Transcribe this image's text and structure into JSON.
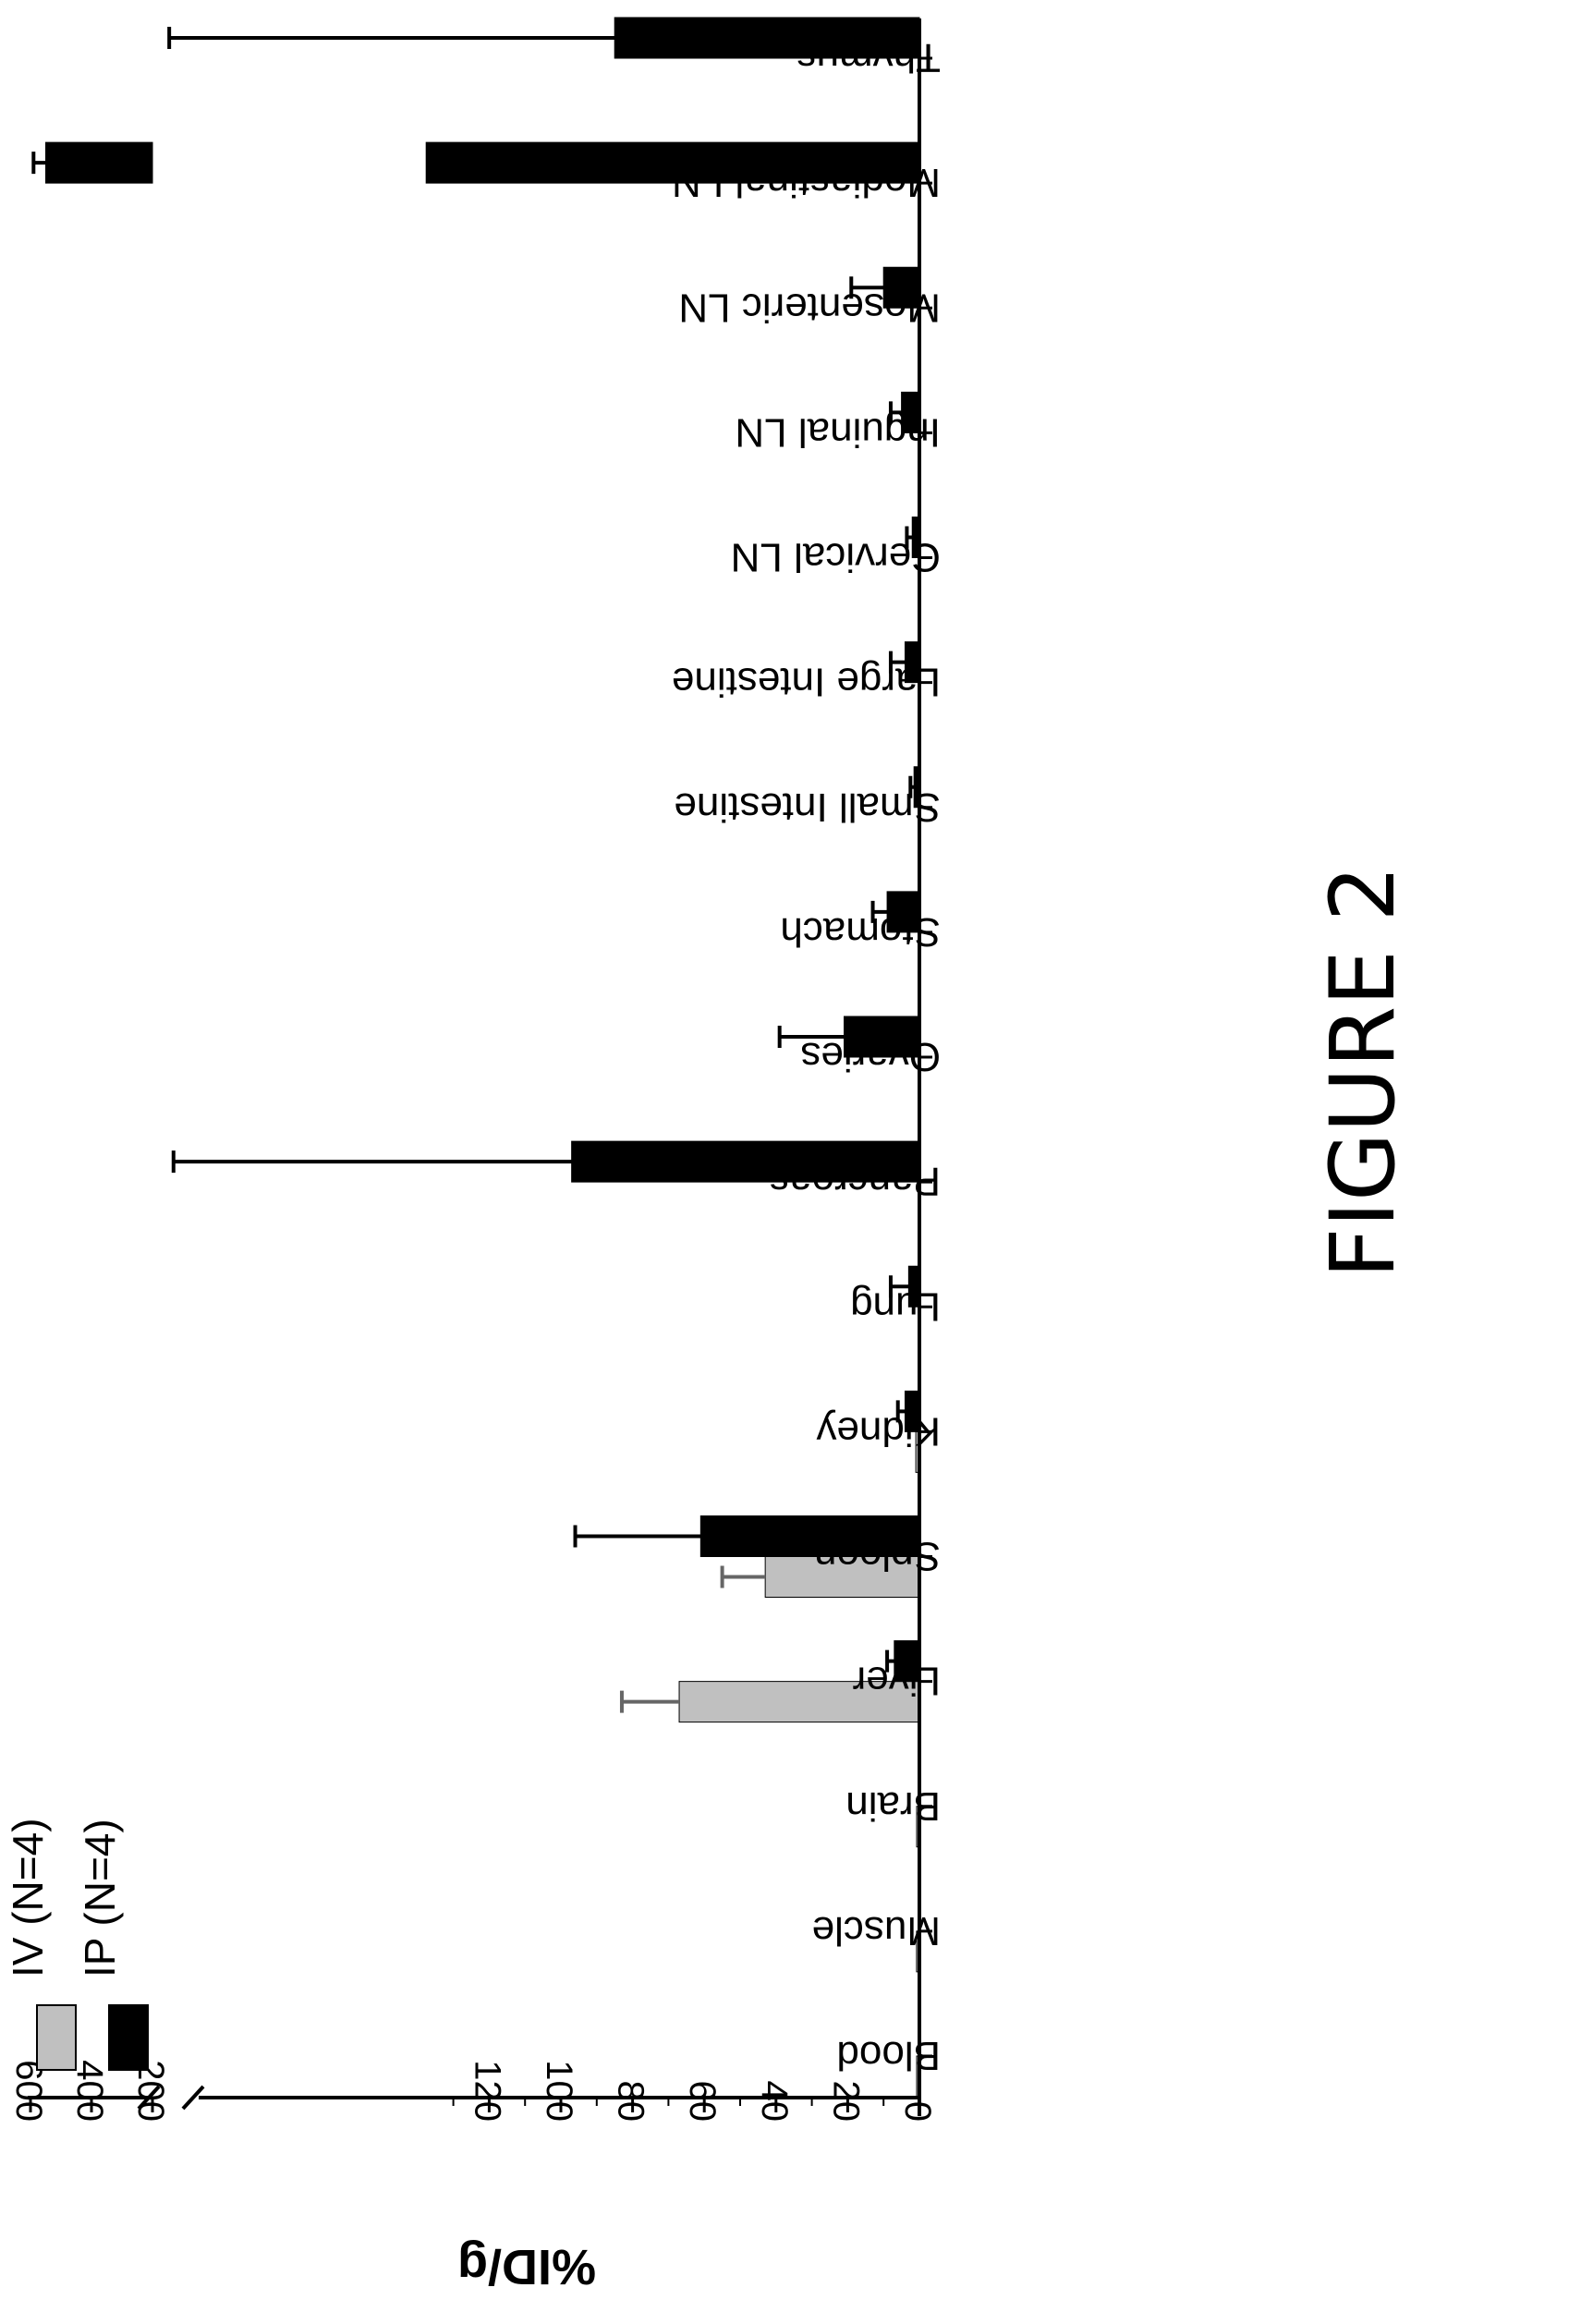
{
  "figure_label": "FIGURE 2",
  "colors": {
    "iv": "#c0c0c0",
    "ip": "#000000",
    "axis": "#000000"
  },
  "chart_data": {
    "type": "bar",
    "orientation": "horizontal",
    "title": "",
    "xlabel": "",
    "ylabel": "%ID/g",
    "axis": {
      "broken": true,
      "lower_range": [
        0,
        130
      ],
      "lower_ticks": [
        0,
        20,
        40,
        60,
        80,
        100,
        120
      ],
      "upper_range": [
        150,
        650
      ],
      "upper_ticks": [
        200,
        400,
        600
      ]
    },
    "legend": {
      "placement": "top-left",
      "entries": [
        "IV (N=4)",
        "IP (N=4)"
      ]
    },
    "categories": [
      "Blood",
      "Muscle",
      "Brain",
      "Liver",
      "Spleen",
      "Kidney",
      "Lung",
      "Pancreas",
      "Ovaries",
      "Stomach",
      "Small Intestine",
      "Large Intestine",
      "Cervical LN",
      "Inguinal LN",
      "Mesenteric LN",
      "Mediastinal LN",
      "Thymus"
    ],
    "series": [
      {
        "name": "IV (N=4)",
        "values": [
          0.2,
          0.8,
          0.1,
          67,
          43,
          1,
          0,
          0,
          0,
          0,
          0,
          0,
          0,
          0,
          0,
          0,
          0
        ],
        "errors": [
          0.1,
          0.3,
          0.1,
          16,
          12,
          0.5,
          0,
          0,
          0,
          0,
          0,
          0,
          0,
          0,
          0,
          0,
          0
        ]
      },
      {
        "name": "IP (N=4)",
        "values": [
          0,
          0,
          0,
          7,
          61,
          4,
          3,
          97,
          21,
          9,
          1.5,
          4,
          2,
          5,
          10,
          550,
          85
        ],
        "errors": [
          0,
          0,
          0,
          2,
          35,
          2,
          5,
          34,
          18,
          4,
          1,
          4,
          1.5,
          3,
          9,
          40,
          60
        ]
      }
    ]
  }
}
